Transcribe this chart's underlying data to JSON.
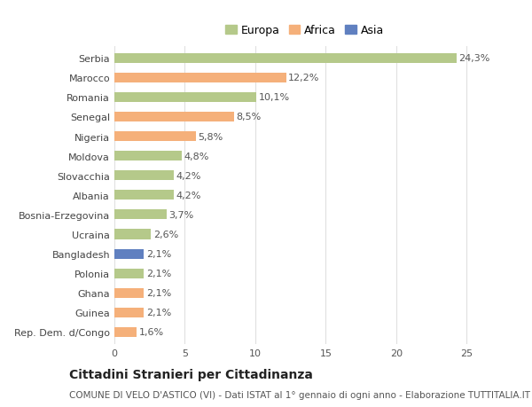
{
  "categories": [
    "Rep. Dem. d/Congo",
    "Guinea",
    "Ghana",
    "Polonia",
    "Bangladesh",
    "Ucraina",
    "Bosnia-Erzegovina",
    "Albania",
    "Slovacchia",
    "Moldova",
    "Nigeria",
    "Senegal",
    "Romania",
    "Marocco",
    "Serbia"
  ],
  "values": [
    1.6,
    2.1,
    2.1,
    2.1,
    2.1,
    2.6,
    3.7,
    4.2,
    4.2,
    4.8,
    5.8,
    8.5,
    10.1,
    12.2,
    24.3
  ],
  "labels": [
    "1,6%",
    "2,1%",
    "2,1%",
    "2,1%",
    "2,1%",
    "2,6%",
    "3,7%",
    "4,2%",
    "4,2%",
    "4,8%",
    "5,8%",
    "8,5%",
    "10,1%",
    "12,2%",
    "24,3%"
  ],
  "colors": [
    "#f5b07a",
    "#f5b07a",
    "#f5b07a",
    "#b5c98a",
    "#6080c0",
    "#b5c98a",
    "#b5c98a",
    "#b5c98a",
    "#b5c98a",
    "#b5c98a",
    "#f5b07a",
    "#f5b07a",
    "#b5c98a",
    "#f5b07a",
    "#b5c98a"
  ],
  "continent_colors": {
    "Europa": "#b5c98a",
    "Africa": "#f5b07a",
    "Asia": "#6080c0"
  },
  "xlim": [
    0,
    27
  ],
  "xticks": [
    0,
    5,
    10,
    15,
    20,
    25
  ],
  "title": "Cittadini Stranieri per Cittadinanza",
  "subtitle": "COMUNE DI VELO D'ASTICO (VI) - Dati ISTAT al 1° gennaio di ogni anno - Elaborazione TUTTITALIA.IT",
  "bg_color": "#ffffff",
  "grid_color": "#e0e0e0",
  "bar_height": 0.5,
  "label_fontsize": 8,
  "ytick_fontsize": 8,
  "xtick_fontsize": 8,
  "title_fontsize": 10,
  "subtitle_fontsize": 7.5,
  "legend_fontsize": 9
}
